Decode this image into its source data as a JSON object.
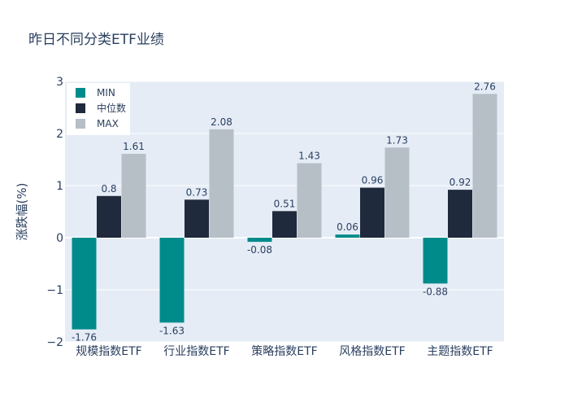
{
  "chart_data": {
    "type": "bar",
    "title": "昨日不同分类ETF业绩",
    "xlabel": "",
    "ylabel": "涨跌幅(%)",
    "ylim": [
      -2,
      3
    ],
    "yticks": [
      "−2",
      "−1",
      "0",
      "1",
      "2",
      "3"
    ],
    "grid": true,
    "legend_position": "top-left",
    "categories": [
      "规模指数ETF",
      "行业指数ETF",
      "策略指数ETF",
      "风格指数ETF",
      "主题指数ETF"
    ],
    "series": [
      {
        "name": "MIN",
        "color": "#008b8b",
        "values": [
          -1.76,
          -1.63,
          -0.08,
          0.06,
          -0.88
        ],
        "labels": [
          "-1.76",
          "-1.63",
          "-0.08",
          "0.06",
          "-0.88"
        ]
      },
      {
        "name": "中位数",
        "color": "#1f2a3c",
        "values": [
          0.8,
          0.73,
          0.51,
          0.96,
          0.92
        ],
        "labels": [
          "0.8",
          "0.73",
          "0.51",
          "0.96",
          "0.92"
        ]
      },
      {
        "name": "MAX",
        "color": "#b6bec6",
        "values": [
          1.61,
          2.08,
          1.43,
          1.73,
          2.76
        ],
        "labels": [
          "1.61",
          "2.08",
          "1.43",
          "1.73",
          "2.76"
        ]
      }
    ]
  }
}
